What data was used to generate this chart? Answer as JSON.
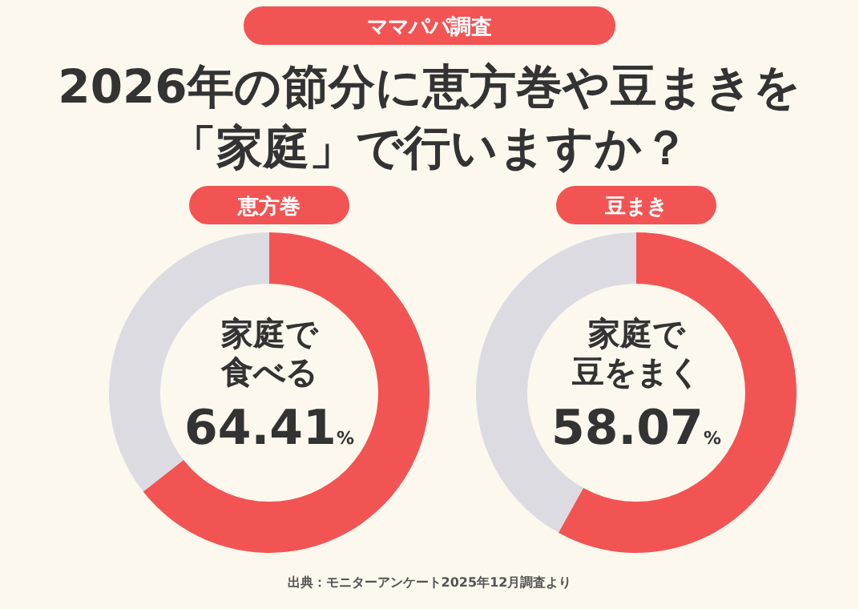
{
  "chart_data": [
    {
      "type": "other",
      "title": "2026年の節分に恵方巻や豆まきを「家庭」で行いますか？",
      "subtitle": "ママパパ調査",
      "annotations": [
        "出典：モニターアンケート2025年12月調査より"
      ]
    },
    {
      "type": "donut",
      "title": "恵方巻",
      "categories": [
        null,
        null
      ],
      "values": [
        64.41,
        35.59
      ],
      "colors": [
        "#f25454",
        "#dddbe2"
      ],
      "value_labels": [
        "64.41%",
        null
      ],
      "annotations": [
        "家庭で",
        "食べる"
      ]
    },
    {
      "type": "donut",
      "title": "豆まき",
      "categories": [
        null,
        null
      ],
      "values": [
        58.07,
        41.93
      ],
      "colors": [
        "#f25454",
        "#dddbe2"
      ],
      "value_labels": [
        "58.07%",
        null
      ],
      "annotations": [
        "家庭で",
        "豆をまく"
      ]
    }
  ]
}
